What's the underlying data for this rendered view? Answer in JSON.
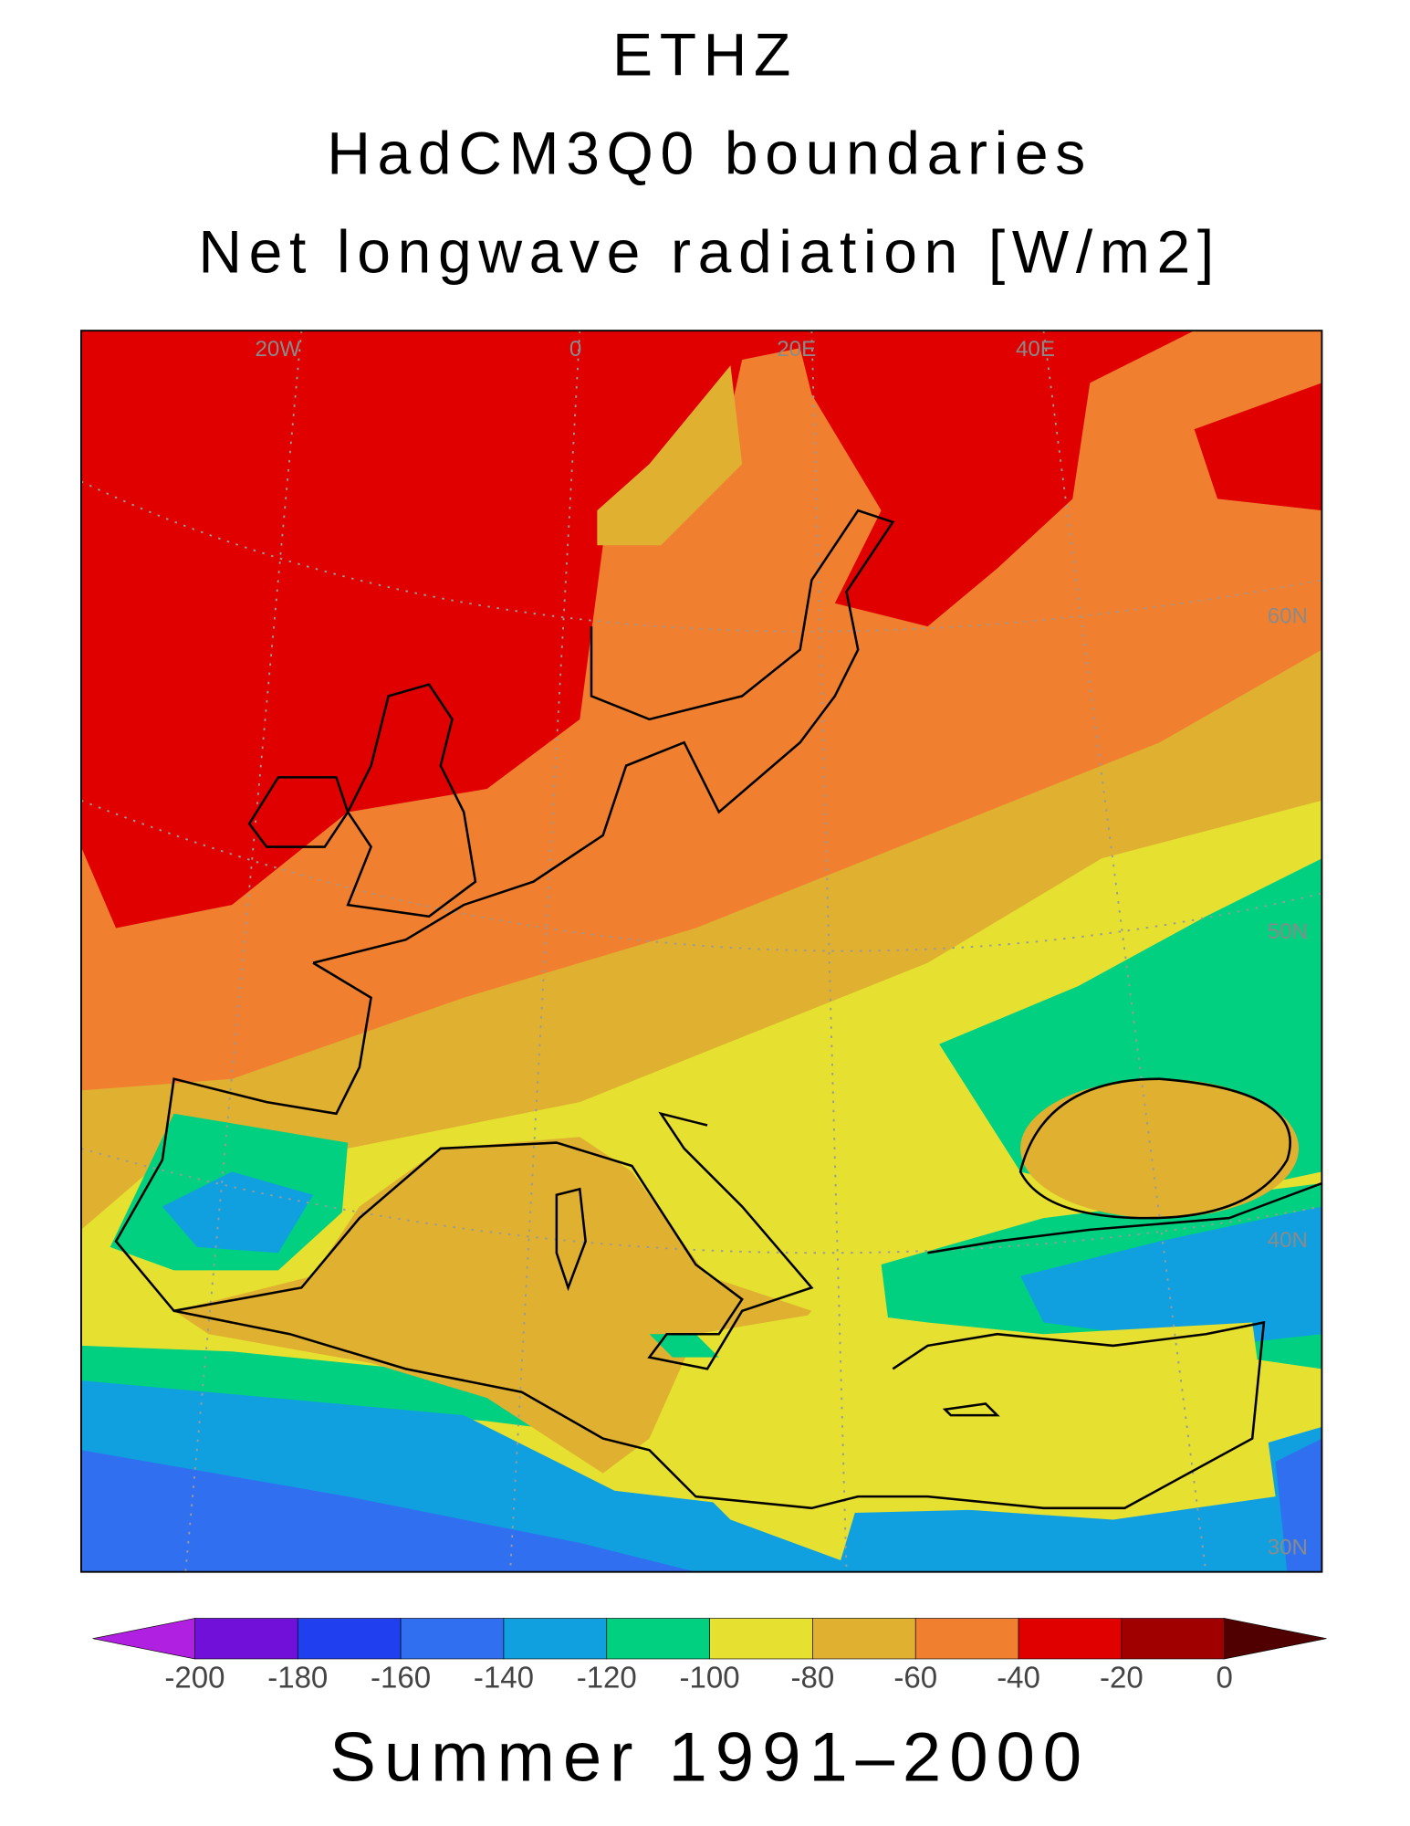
{
  "title": {
    "lines": [
      "ETHZ",
      "HadCM3Q0 boundaries",
      "Net longwave radiation [W/m2]"
    ]
  },
  "map": {
    "grid_labels": [
      "20W",
      "0",
      "20E",
      "40E",
      "60N",
      "50N",
      "40N",
      "30N"
    ]
  },
  "colorbar": {
    "ticks": [
      -200,
      -180,
      -160,
      -140,
      -120,
      -100,
      -80,
      -60,
      -40,
      -20,
      0
    ],
    "colors": [
      "#b020e0",
      "#7010d8",
      "#2040f0",
      "#3070f0",
      "#10a0e0",
      "#00d080",
      "#e6e030",
      "#e0b030",
      "#f08030",
      "#e00000",
      "#a00000",
      "#500000"
    ]
  },
  "footer": "Summer 1991–2000"
}
